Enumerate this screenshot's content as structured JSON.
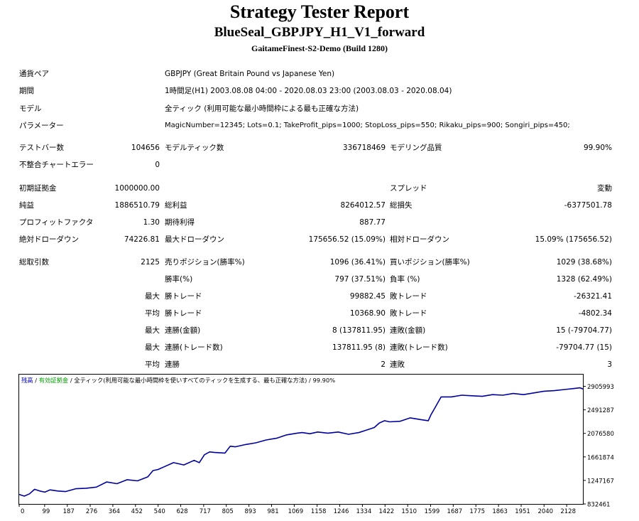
{
  "header": {
    "title": "Strategy Tester Report",
    "subtitle": "BlueSeal_GBPJPY_H1_V1_forward",
    "server": "GaitameFinest-S2-Demo (Build 1280)"
  },
  "info": {
    "pair_label": "通貨ペア",
    "pair_value": "GBPJPY (Great Britain Pound vs Japanese Yen)",
    "period_label": "期間",
    "period_value": "1時間足(H1) 2003.08.08 04:00 - 2020.08.03 23:00 (2003.08.03 - 2020.08.04)",
    "model_label": "モデル",
    "model_value": "全ティック (利用可能な最小時間枠による最も正確な方法)",
    "params_label": "パラメーター",
    "params_value": "MagicNumber=12345; Lots=0.1; TakeProfit_pips=1000; StopLoss_pips=550; Rikaku_pips=900; Songiri_pips=450;"
  },
  "stats": {
    "bars_label": "テストバー数",
    "bars_value": "104656",
    "ticks_label": "モデルティック数",
    "ticks_value": "336718469",
    "quality_label": "モデリング品質",
    "quality_value": "99.90%",
    "errors_label": "不整合チャートエラー",
    "errors_value": "0",
    "deposit_label": "初期証拠金",
    "deposit_value": "1000000.00",
    "spread_label": "スプレッド",
    "spread_value": "変動",
    "net_label": "純益",
    "net_value": "1886510.79",
    "gross_profit_label": "総利益",
    "gross_profit_value": "8264012.57",
    "gross_loss_label": "総損失",
    "gross_loss_value": "-6377501.78",
    "pf_label": "プロフィットファクタ",
    "pf_value": "1.30",
    "expected_label": "期待利得",
    "expected_value": "887.77",
    "abs_dd_label": "絶対ドローダウン",
    "abs_dd_value": "74226.81",
    "max_dd_label": "最大ドローダウン",
    "max_dd_value": "175656.52 (15.09%)",
    "rel_dd_label": "相対ドローダウン",
    "rel_dd_value": "15.09% (175656.52)",
    "trades_label": "総取引数",
    "trades_value": "2125",
    "short_label": "売りポジション(勝率%)",
    "short_value": "1096 (36.41%)",
    "long_label": "買いポジション(勝率%)",
    "long_value": "1029 (38.68%)",
    "win_label": "勝率(%)",
    "win_value": "797 (37.51%)",
    "loss_label": "負率 (%)",
    "loss_value": "1328 (62.49%)",
    "max1": "最大",
    "largest_win_label": "勝トレード",
    "largest_win_value": "99882.45",
    "largest_loss_label": "敗トレード",
    "largest_loss_value": "-26321.41",
    "avg1": "平均",
    "avg_win_label": "勝トレード",
    "avg_win_value": "10368.90",
    "avg_loss_label": "敗トレード",
    "avg_loss_value": "-4802.34",
    "max2": "最大",
    "cons_wins_amt_label": "連勝(金額)",
    "cons_wins_amt_value": "8 (137811.95)",
    "cons_losses_amt_label": "連敗(金額)",
    "cons_losses_amt_value": "15 (-79704.77)",
    "max3": "最大",
    "cons_wins_trd_label": "連勝(トレード数)",
    "cons_wins_trd_value": "137811.95 (8)",
    "cons_losses_trd_label": "連敗(トレード数)",
    "cons_losses_trd_value": "-79704.77 (15)",
    "avg2": "平均",
    "avg_cons_wins_label": "連勝",
    "avg_cons_wins_value": "2",
    "avg_cons_losses_label": "連敗",
    "avg_cons_losses_value": "3"
  },
  "chart_legend": {
    "balance": "残高",
    "sep1": " / ",
    "equity": "有効証拠金",
    "sep2": " / ",
    "model": "全ティック(利用可能な最小時間枠を使いすべてのティックを生成する、最も正確な方法)",
    "quality": " / 99.90%"
  },
  "chart_data": {
    "type": "line",
    "line_color": "#00009c",
    "ylim": [
      832461,
      3113000
    ],
    "xlim": [
      0,
      2191
    ],
    "y_ticks": [
      "2905993",
      "2491287",
      "2076580",
      "1661874",
      "1247167",
      "832461"
    ],
    "y_tick_values": [
      2905993,
      2491287,
      2076580,
      1661874,
      1247167,
      832461
    ],
    "x_ticks": [
      "0",
      "99",
      "187",
      "276",
      "364",
      "452",
      "540",
      "628",
      "717",
      "805",
      "893",
      "981",
      "1069",
      "1158",
      "1246",
      "1334",
      "1422",
      "1510",
      "1599",
      "1687",
      "1775",
      "1863",
      "1951",
      "2040",
      "2128"
    ],
    "x_tick_values": [
      0,
      99,
      187,
      276,
      364,
      452,
      540,
      628,
      717,
      805,
      893,
      981,
      1069,
      1158,
      1246,
      1334,
      1422,
      1510,
      1599,
      1687,
      1775,
      1863,
      1951,
      2040,
      2128
    ],
    "series": [
      {
        "x": [
          0,
          20,
          40,
          60,
          80,
          100,
          120,
          150,
          180,
          220,
          260,
          300,
          340,
          380,
          420,
          460,
          500,
          520,
          540,
          560,
          600,
          640,
          680,
          700,
          720,
          740,
          760,
          800,
          820,
          840,
          880,
          920,
          960,
          1000,
          1040,
          1080,
          1100,
          1130,
          1160,
          1200,
          1240,
          1280,
          1320,
          1340,
          1380,
          1400,
          1420,
          1440,
          1480,
          1520,
          1560,
          1590,
          1600,
          1620,
          1640,
          1680,
          1720,
          1760,
          1800,
          1840,
          1880,
          1920,
          1960,
          2000,
          2040,
          2080,
          2120,
          2160,
          2180,
          2191
        ],
        "y": [
          1000000,
          970000,
          1010000,
          1090000,
          1060000,
          1040000,
          1080000,
          1060000,
          1050000,
          1100000,
          1110000,
          1130000,
          1220000,
          1190000,
          1260000,
          1240000,
          1310000,
          1420000,
          1440000,
          1480000,
          1560000,
          1520000,
          1600000,
          1560000,
          1700000,
          1750000,
          1740000,
          1730000,
          1850000,
          1840000,
          1880000,
          1910000,
          1960000,
          1990000,
          2050000,
          2080000,
          2090000,
          2070000,
          2100000,
          2080000,
          2100000,
          2060000,
          2090000,
          2120000,
          2180000,
          2260000,
          2300000,
          2280000,
          2290000,
          2350000,
          2320000,
          2300000,
          2400000,
          2560000,
          2720000,
          2720000,
          2750000,
          2740000,
          2730000,
          2760000,
          2750000,
          2780000,
          2760000,
          2790000,
          2820000,
          2830000,
          2850000,
          2870000,
          2880000,
          2860000
        ]
      }
    ]
  }
}
